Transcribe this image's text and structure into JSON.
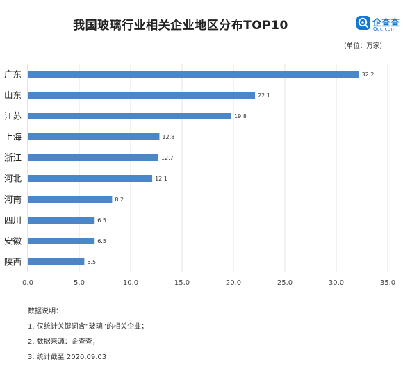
{
  "header": {
    "title": "我国玻璃行业相关企业地区分布TOP10",
    "unit": "(单位：万家)"
  },
  "logo": {
    "name": "企查查",
    "sub": "Qcc.com",
    "icon": "qcc-logo-icon",
    "color": "#1677d2"
  },
  "chart_data": {
    "type": "bar",
    "orientation": "horizontal",
    "categories": [
      "广东",
      "山东",
      "江苏",
      "上海",
      "浙江",
      "河北",
      "河南",
      "四川",
      "安徽",
      "陕西"
    ],
    "values": [
      32.2,
      22.1,
      19.8,
      12.8,
      12.7,
      12.1,
      8.2,
      6.5,
      6.5,
      5.5
    ],
    "value_labels": [
      "32.2",
      "22.1",
      "19.8",
      "12.8",
      "12.7",
      "12.1",
      "8.2",
      "6.5",
      "6.5",
      "5.5"
    ],
    "xlim": [
      0,
      35
    ],
    "xticks": [
      "0.0",
      "5.0",
      "10.0",
      "15.0",
      "20.0",
      "25.0",
      "30.0",
      "35.0"
    ],
    "grid": true,
    "bar_color": "#4a86c8",
    "grid_color": "#e3e3e3"
  },
  "notes": {
    "heading": "数据说明：",
    "items": [
      "1. 仅统计关键词含“玻璃”的相关企业；",
      "2. 数据来源：企查查；",
      "3. 统计截至 2020.09.03"
    ]
  }
}
